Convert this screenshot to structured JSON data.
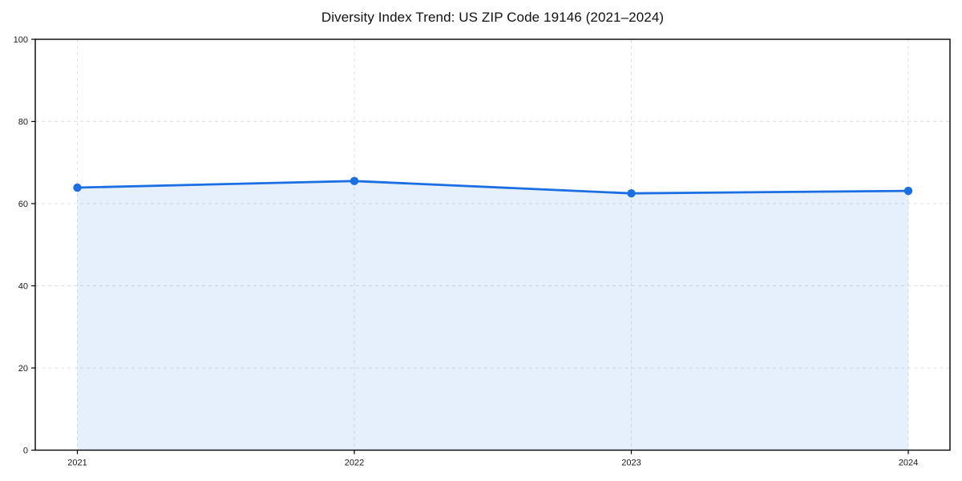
{
  "title": "Diversity Index Trend: US ZIP Code 19146 (2021–2024)",
  "chart_data": {
    "type": "line",
    "title": "Diversity Index Trend: US ZIP Code 19146 (2021–2024)",
    "x": [
      2021,
      2022,
      2023,
      2024
    ],
    "xtick_labels": [
      "2021",
      "2022",
      "2023",
      "2024"
    ],
    "series": [
      {
        "name": "Diversity Index",
        "values": [
          63.9,
          65.5,
          62.5,
          63.1
        ]
      }
    ],
    "xlabel": "",
    "ylabel": "",
    "ylim": [
      0,
      100
    ],
    "yticks": [
      0,
      20,
      40,
      60,
      80,
      100
    ],
    "grid": "dashed-both-axes",
    "legend": "none",
    "area_fill_to_zero": true,
    "marker": "circle",
    "colors": {
      "line": "#1b6fe2",
      "area_fill": "#1b6fe2",
      "area_fill_opacity": 0.11,
      "grid": "#e0e0e0",
      "spine": "#000000",
      "tick_label": "#1a1a1a",
      "title": "#111111",
      "background": "#ffffff"
    }
  }
}
